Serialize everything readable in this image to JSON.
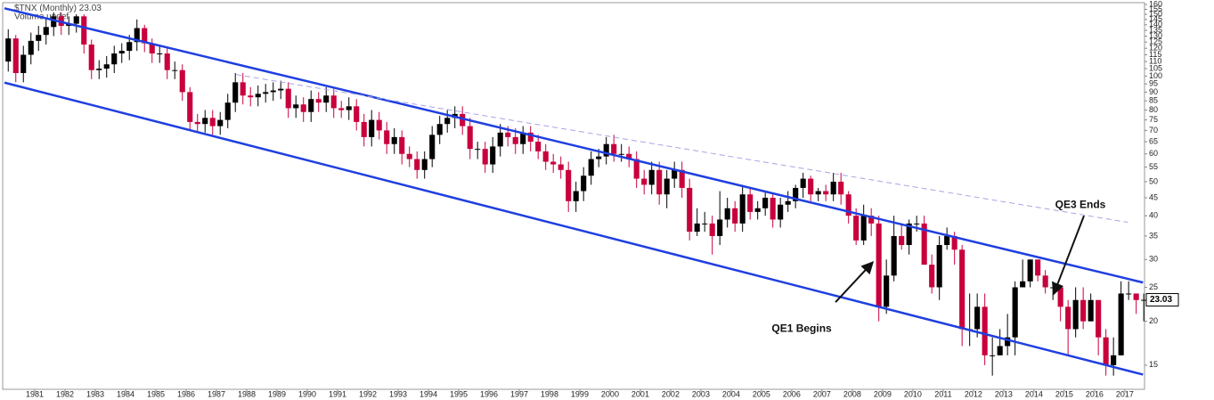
{
  "chart_data": {
    "type": "candlestick",
    "title": "$TNX (Monthly)",
    "subtitle": "Volume undef",
    "log_scale": true,
    "grid": false,
    "up_color": "#000000",
    "down_color": "#c8003c",
    "xlim": [
      1980,
      2017.65
    ],
    "ylim": [
      12.8,
      160
    ],
    "xticks": [
      1981,
      1982,
      1983,
      1984,
      1985,
      1986,
      1987,
      1988,
      1989,
      1990,
      1991,
      1992,
      1993,
      1994,
      1995,
      1996,
      1997,
      1998,
      1999,
      2000,
      2001,
      2002,
      2003,
      2004,
      2005,
      2006,
      2007,
      2008,
      2009,
      2010,
      2011,
      2012,
      2013,
      2014,
      2015,
      2016,
      2017
    ],
    "yticks": [
      15,
      20,
      25,
      30,
      35,
      40,
      45,
      50,
      55,
      60,
      65,
      70,
      75,
      80,
      85,
      90,
      95,
      100,
      105,
      110,
      115,
      120,
      125,
      130,
      135,
      140,
      145,
      150,
      155,
      160
    ],
    "x": [
      1980.125,
      1980.375,
      1980.625,
      1980.875,
      1981.125,
      1981.375,
      1981.625,
      1981.875,
      1982.125,
      1982.375,
      1982.625,
      1982.875,
      1983.125,
      1983.375,
      1983.625,
      1983.875,
      1984.125,
      1984.375,
      1984.625,
      1984.875,
      1985.125,
      1985.375,
      1985.625,
      1985.875,
      1986.125,
      1986.375,
      1986.625,
      1986.875,
      1987.125,
      1987.375,
      1987.625,
      1987.875,
      1988.125,
      1988.375,
      1988.625,
      1988.875,
      1989.125,
      1989.375,
      1989.625,
      1989.875,
      1990.125,
      1990.375,
      1990.625,
      1990.875,
      1991.125,
      1991.375,
      1991.625,
      1991.875,
      1992.125,
      1992.375,
      1992.625,
      1992.875,
      1993.125,
      1993.375,
      1993.625,
      1993.875,
      1994.125,
      1994.375,
      1994.625,
      1994.875,
      1995.125,
      1995.375,
      1995.625,
      1995.875,
      1996.125,
      1996.375,
      1996.625,
      1996.875,
      1997.125,
      1997.375,
      1997.625,
      1997.875,
      1998.125,
      1998.375,
      1998.625,
      1998.875,
      1999.125,
      1999.375,
      1999.625,
      1999.875,
      2000.125,
      2000.375,
      2000.625,
      2000.875,
      2001.125,
      2001.375,
      2001.625,
      2001.875,
      2002.125,
      2002.375,
      2002.625,
      2002.875,
      2003.125,
      2003.375,
      2003.625,
      2003.875,
      2004.125,
      2004.375,
      2004.625,
      2004.875,
      2005.125,
      2005.375,
      2005.625,
      2005.875,
      2006.125,
      2006.375,
      2006.625,
      2006.875,
      2007.125,
      2007.375,
      2007.625,
      2007.875,
      2008.125,
      2008.375,
      2008.625,
      2008.875,
      2009.125,
      2009.375,
      2009.625,
      2009.875,
      2010.125,
      2010.375,
      2010.625,
      2010.875,
      2011.125,
      2011.375,
      2011.625,
      2011.875,
      2012.125,
      2012.375,
      2012.625,
      2012.875,
      2013.125,
      2013.375,
      2013.625,
      2013.875,
      2014.125,
      2014.375,
      2014.625,
      2014.875,
      2015.125,
      2015.375,
      2015.625,
      2015.875,
      2016.125,
      2016.375,
      2016.625,
      2016.875,
      2017.125,
      2017.375,
      2017.625
    ],
    "open": [
      110,
      128,
      102,
      115,
      126,
      131,
      138,
      148,
      139,
      141,
      148,
      123,
      104,
      105,
      108,
      116,
      118,
      125,
      137,
      124,
      116,
      116,
      104,
      104,
      90,
      74,
      73,
      76,
      72,
      75,
      84,
      96,
      88,
      87,
      89,
      90,
      91,
      92,
      81,
      83,
      79,
      86,
      84,
      88,
      81,
      80,
      82,
      74,
      67,
      75,
      70,
      64,
      67,
      60,
      58,
      54,
      58,
      68,
      73,
      76,
      78,
      72,
      62,
      62,
      56,
      63,
      69,
      67,
      64,
      69,
      65,
      61,
      57,
      56,
      54,
      44,
      47,
      52,
      58,
      59,
      64,
      60,
      60,
      58,
      51,
      49,
      54,
      46,
      51,
      54,
      48,
      36,
      38,
      38,
      35,
      39,
      42,
      38,
      46,
      41,
      42,
      45,
      39,
      43,
      44,
      48,
      51,
      46,
      47,
      46,
      50,
      46,
      40,
      34,
      40,
      38,
      22,
      27,
      35,
      33,
      38,
      38,
      29,
      25,
      33,
      35,
      32,
      19,
      19,
      22,
      16,
      16,
      17,
      18,
      25,
      26,
      30,
      27,
      25,
      25,
      22,
      19,
      23,
      20,
      23,
      18,
      15,
      16,
      24,
      24,
      23
    ],
    "high": [
      136,
      131,
      122,
      133,
      139,
      146,
      152,
      152,
      148,
      150,
      150,
      127,
      111,
      114,
      122,
      124,
      131,
      145,
      140,
      128,
      123,
      121,
      110,
      108,
      93,
      78,
      80,
      80,
      79,
      89,
      102,
      102,
      93,
      94,
      95,
      96,
      97,
      96,
      88,
      87,
      91,
      90,
      93,
      92,
      85,
      87,
      86,
      78,
      80,
      79,
      74,
      71,
      70,
      63,
      61,
      61,
      72,
      77,
      80,
      82,
      82,
      76,
      65,
      65,
      67,
      73,
      72,
      71,
      72,
      72,
      68,
      64,
      60,
      59,
      57,
      50,
      55,
      61,
      62,
      67,
      68,
      64,
      63,
      61,
      54,
      57,
      57,
      54,
      57,
      57,
      51,
      42,
      41,
      40,
      47,
      45,
      44,
      49,
      48,
      44,
      47,
      46,
      45,
      47,
      49,
      53,
      52,
      48,
      49,
      53,
      53,
      47,
      42,
      43,
      42,
      40,
      30,
      40,
      38,
      39,
      40,
      40,
      31,
      35,
      37,
      36,
      33,
      24,
      24,
      24,
      18,
      19,
      21,
      26,
      30,
      30,
      30,
      28,
      26,
      25,
      23,
      25,
      25,
      24,
      23,
      19,
      18,
      26,
      26,
      24,
      24
    ],
    "low": [
      103,
      96,
      96,
      108,
      118,
      123,
      130,
      131,
      131,
      133,
      116,
      98,
      98,
      99,
      102,
      109,
      111,
      118,
      117,
      109,
      109,
      98,
      98,
      85,
      70,
      69,
      69,
      68,
      68,
      71,
      79,
      83,
      82,
      82,
      84,
      85,
      86,
      76,
      76,
      74,
      74,
      79,
      79,
      76,
      76,
      75,
      70,
      63,
      63,
      66,
      60,
      60,
      56,
      55,
      51,
      51,
      55,
      64,
      69,
      71,
      68,
      58,
      58,
      53,
      53,
      59,
      63,
      60,
      60,
      61,
      58,
      54,
      53,
      51,
      41,
      41,
      44,
      49,
      55,
      56,
      57,
      57,
      55,
      48,
      46,
      46,
      43,
      42,
      48,
      45,
      34,
      35,
      36,
      31,
      33,
      37,
      36,
      36,
      39,
      39,
      40,
      37,
      37,
      41,
      42,
      45,
      44,
      44,
      44,
      44,
      43,
      38,
      33,
      33,
      35,
      20,
      21,
      26,
      32,
      31,
      36,
      29,
      24,
      23,
      32,
      29,
      17,
      17,
      18,
      15,
      14,
      16,
      16,
      16,
      25,
      25,
      26,
      24,
      23,
      20,
      16,
      18,
      19,
      20,
      16,
      14,
      14,
      16,
      23,
      21,
      20
    ],
    "close": [
      128,
      102,
      115,
      126,
      131,
      138,
      148,
      139,
      141,
      148,
      123,
      104,
      105,
      108,
      116,
      118,
      125,
      137,
      124,
      116,
      116,
      104,
      104,
      90,
      74,
      73,
      76,
      72,
      75,
      84,
      96,
      88,
      87,
      89,
      90,
      91,
      92,
      81,
      83,
      79,
      86,
      84,
      88,
      81,
      80,
      82,
      74,
      67,
      75,
      70,
      64,
      67,
      60,
      58,
      54,
      58,
      68,
      73,
      76,
      78,
      72,
      62,
      62,
      56,
      63,
      69,
      67,
      64,
      69,
      65,
      61,
      57,
      56,
      54,
      44,
      47,
      52,
      58,
      59,
      64,
      60,
      60,
      58,
      51,
      49,
      54,
      46,
      51,
      54,
      48,
      36,
      38,
      38,
      35,
      39,
      42,
      38,
      46,
      41,
      42,
      45,
      39,
      43,
      44,
      48,
      51,
      46,
      47,
      46,
      50,
      46,
      40,
      34,
      40,
      38,
      22,
      27,
      35,
      33,
      38,
      38,
      29,
      25,
      33,
      35,
      32,
      19,
      19,
      22,
      16,
      16,
      17,
      18,
      25,
      26,
      30,
      27,
      25,
      25,
      22,
      19,
      23,
      20,
      23,
      18,
      15,
      16,
      24,
      24,
      23,
      23.03
    ],
    "lines": [
      {
        "x": [
          1980,
          2017.6
        ],
        "y": [
          156,
          25.8
        ],
        "color": "#1f3fe0",
        "style": "solid"
      },
      {
        "x": [
          1980,
          2017.6
        ],
        "y": [
          95.8,
          14.1
        ],
        "color": "#1f3fe0",
        "style": "solid"
      },
      {
        "x": [
          1987.65,
          2017.1
        ],
        "y": [
          101,
          38.3
        ],
        "color": "#a9a3e6",
        "style": "dashed"
      }
    ],
    "annotations": [
      {
        "text": "QE1 Begins",
        "x": 2008.68,
        "y": 29.5
      },
      {
        "text": "QE3 Ends",
        "x": 2014.65,
        "y": 23.9
      }
    ]
  }
}
